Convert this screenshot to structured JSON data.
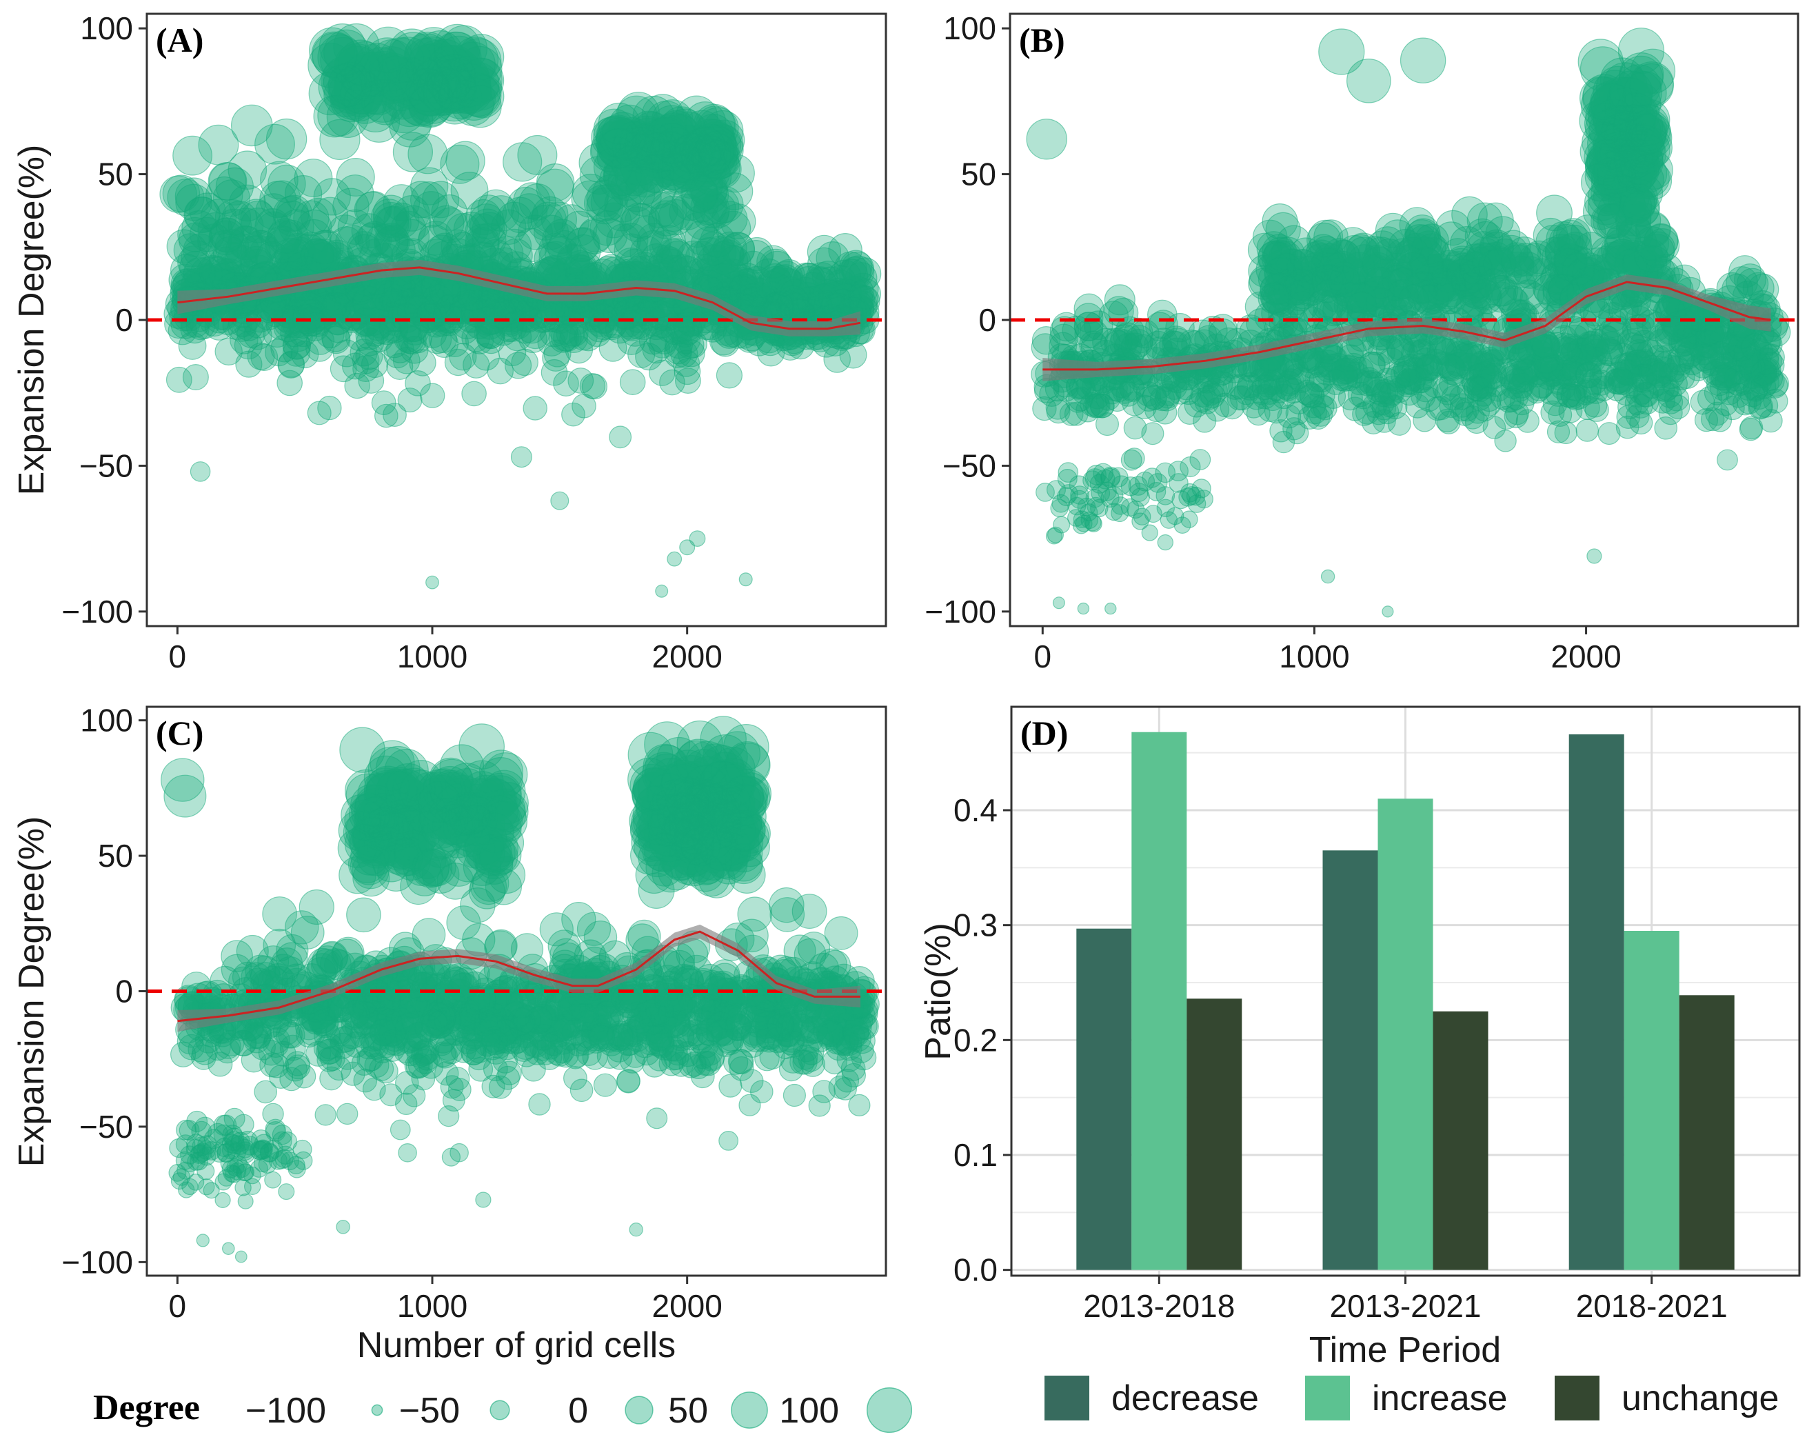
{
  "colors": {
    "point": "#14aa7a",
    "smooth_line": "#cc2222",
    "band": "#7a7a7a",
    "zero_line": "#ee0000",
    "decrease": "#376b5e",
    "increase": "#5cc291",
    "unchange": "#344730"
  },
  "chart_data": [
    {
      "id": "A",
      "panel_label": "(A)",
      "type": "scatter",
      "xlim": [
        -120,
        2780
      ],
      "ylim": [
        -105,
        105
      ],
      "xticks": [
        0,
        1000,
        2000
      ],
      "xtick_labels": [
        "0",
        "1000",
        "2000"
      ],
      "yticks": [
        -100,
        -50,
        0,
        50,
        100
      ],
      "ytick_labels": [
        "−100",
        "−50",
        "0",
        "50",
        "100"
      ],
      "ylabel": "Expansion Degree(%)",
      "xlabel": "",
      "hline": 0,
      "smooth": {
        "x": [
          0,
          200,
          400,
          600,
          800,
          950,
          1100,
          1300,
          1450,
          1600,
          1800,
          1950,
          2100,
          2250,
          2400,
          2550,
          2680
        ],
        "y": [
          6,
          8,
          11,
          14,
          17,
          18,
          16,
          12,
          9,
          9,
          11,
          10,
          6,
          -1,
          -3,
          -3,
          -1
        ]
      },
      "clusters": [
        {
          "x": [
            0,
            2700
          ],
          "y": [
            -12,
            28
          ],
          "n": 700
        },
        {
          "x": [
            0,
            2200
          ],
          "y": [
            -45,
            75
          ],
          "n": 650
        },
        {
          "x": [
            600,
            1200
          ],
          "y": [
            65,
            100
          ],
          "n": 150
        },
        {
          "x": [
            1700,
            2150
          ],
          "y": [
            40,
            75
          ],
          "n": 160
        },
        {
          "x": [
            2200,
            2680
          ],
          "y": [
            -15,
            15
          ],
          "n": 120
        }
      ],
      "outliers": [
        [
          1000,
          -90
        ],
        [
          1900,
          -93
        ],
        [
          2230,
          -89
        ],
        [
          1950,
          -82
        ],
        [
          2000,
          -78
        ],
        [
          2040,
          -75
        ],
        [
          90,
          -52
        ],
        [
          1500,
          -62
        ],
        [
          1350,
          -47
        ]
      ]
    },
    {
      "id": "B",
      "panel_label": "(B)",
      "type": "scatter",
      "xlim": [
        -120,
        2780
      ],
      "ylim": [
        -105,
        105
      ],
      "xticks": [
        0,
        1000,
        2000
      ],
      "xtick_labels": [
        "0",
        "1000",
        "2000"
      ],
      "yticks": [
        -100,
        -50,
        0,
        50,
        100
      ],
      "ytick_labels": [
        "−100",
        "−50",
        "0",
        "50",
        "100"
      ],
      "ylabel": "",
      "xlabel": "",
      "hline": 0,
      "smooth": {
        "x": [
          0,
          200,
          400,
          600,
          800,
          1000,
          1200,
          1400,
          1550,
          1700,
          1850,
          2000,
          2150,
          2300,
          2450,
          2600,
          2680
        ],
        "y": [
          -17,
          -17,
          -16,
          -14,
          -11,
          -7,
          -3,
          -2,
          -4,
          -7,
          -2,
          8,
          13,
          11,
          6,
          1,
          0
        ]
      },
      "clusters": [
        {
          "x": [
            0,
            2700
          ],
          "y": [
            -45,
            10
          ],
          "n": 900
        },
        {
          "x": [
            800,
            2300
          ],
          "y": [
            -10,
            40
          ],
          "n": 450
        },
        {
          "x": [
            2050,
            2250
          ],
          "y": [
            20,
            100
          ],
          "n": 170
        },
        {
          "x": [
            0,
            600
          ],
          "y": [
            -80,
            -40
          ],
          "n": 80
        },
        {
          "x": [
            2300,
            2680
          ],
          "y": [
            -20,
            20
          ],
          "n": 90
        }
      ],
      "outliers": [
        [
          60,
          -97
        ],
        [
          150,
          -99
        ],
        [
          250,
          -99
        ],
        [
          1270,
          -100
        ],
        [
          1050,
          -88
        ],
        [
          2030,
          -81
        ],
        [
          2520,
          -48
        ],
        [
          15,
          62
        ],
        [
          1100,
          92
        ],
        [
          1400,
          89
        ],
        [
          1200,
          82
        ]
      ]
    },
    {
      "id": "C",
      "panel_label": "(C)",
      "type": "scatter",
      "xlim": [
        -120,
        2780
      ],
      "ylim": [
        -105,
        105
      ],
      "xticks": [
        0,
        1000,
        2000
      ],
      "xtick_labels": [
        "0",
        "1000",
        "2000"
      ],
      "yticks": [
        -100,
        -50,
        0,
        50,
        100
      ],
      "ytick_labels": [
        "−100",
        "−50",
        "0",
        "50",
        "100"
      ],
      "ylabel": "Expansion Degree(%)",
      "xlabel": "Number of grid cells",
      "hline": 0,
      "smooth": {
        "x": [
          0,
          200,
          400,
          600,
          800,
          950,
          1100,
          1250,
          1400,
          1550,
          1650,
          1800,
          1950,
          2050,
          2200,
          2350,
          2500,
          2680
        ],
        "y": [
          -11,
          -9,
          -6,
          0,
          8,
          12,
          13,
          11,
          6,
          2,
          2,
          8,
          19,
          22,
          15,
          3,
          -2,
          -2
        ]
      },
      "clusters": [
        {
          "x": [
            0,
            2700
          ],
          "y": [
            -35,
            20
          ],
          "n": 850
        },
        {
          "x": [
            700,
            1300
          ],
          "y": [
            30,
            95
          ],
          "n": 220
        },
        {
          "x": [
            1850,
            2250
          ],
          "y": [
            30,
            100
          ],
          "n": 240
        },
        {
          "x": [
            0,
            500
          ],
          "y": [
            -85,
            -40
          ],
          "n": 100
        },
        {
          "x": [
            300,
            2700
          ],
          "y": [
            -70,
            45
          ],
          "n": 350
        }
      ],
      "outliers": [
        [
          100,
          -92
        ],
        [
          200,
          -95
        ],
        [
          250,
          -98
        ],
        [
          650,
          -87
        ],
        [
          1800,
          -88
        ],
        [
          1200,
          -77
        ],
        [
          20,
          78
        ],
        [
          30,
          72
        ]
      ]
    },
    {
      "id": "D",
      "panel_label": "(D)",
      "type": "bar",
      "categories": [
        "2013-2018",
        "2013-2021",
        "2018-2021"
      ],
      "series": [
        {
          "name": "decrease",
          "values": [
            0.297,
            0.365,
            0.466
          ]
        },
        {
          "name": "increase",
          "values": [
            0.468,
            0.41,
            0.295
          ]
        },
        {
          "name": "unchange",
          "values": [
            0.236,
            0.225,
            0.239
          ]
        }
      ],
      "ylim": [
        -0.005,
        0.49
      ],
      "yticks": [
        0.0,
        0.1,
        0.2,
        0.3,
        0.4
      ],
      "ytick_labels": [
        "0.0",
        "0.1",
        "0.2",
        "0.3",
        "0.4"
      ],
      "ylabel": "Patio(%)",
      "xlabel": "Time Period"
    }
  ],
  "legends": {
    "size": {
      "title": "Degree",
      "items": [
        {
          "value": -100,
          "label": "−100"
        },
        {
          "value": -50,
          "label": "−50"
        },
        {
          "value": 0,
          "label": "0"
        },
        {
          "value": 50,
          "label": "50"
        },
        {
          "value": 100,
          "label": "100"
        }
      ]
    },
    "fill": {
      "items": [
        {
          "key": "decrease",
          "label": "decrease"
        },
        {
          "key": "increase",
          "label": "increase"
        },
        {
          "key": "unchange",
          "label": "unchange"
        }
      ]
    }
  }
}
